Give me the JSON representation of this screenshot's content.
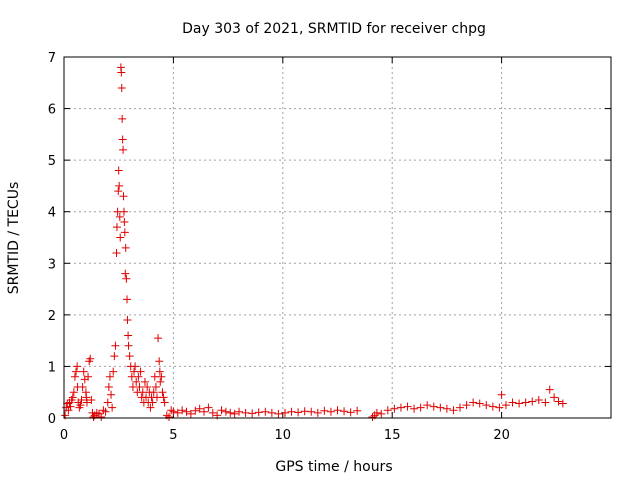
{
  "chart_data": {
    "type": "scatter",
    "title": "Day 303 of 2021, SRMTID for receiver chpg",
    "xlabel": "GPS time / hours",
    "ylabel": "SRMTID / TECUs",
    "xlim": [
      0,
      25
    ],
    "ylim": [
      0,
      7
    ],
    "xticks": [
      0,
      5,
      10,
      15,
      20
    ],
    "yticks": [
      0,
      1,
      2,
      3,
      4,
      5,
      6,
      7
    ],
    "grid": true,
    "marker": "+",
    "color": "#e00000",
    "series": [
      {
        "name": "SRMTID",
        "x": [
          0.05,
          0.1,
          0.15,
          0.2,
          0.25,
          0.3,
          0.35,
          0.4,
          0.45,
          0.5,
          0.55,
          0.6,
          0.62,
          0.65,
          0.7,
          0.75,
          0.8,
          0.85,
          0.9,
          0.95,
          1.0,
          1.02,
          1.05,
          1.1,
          1.15,
          1.2,
          1.25,
          1.3,
          1.35,
          1.4,
          1.5,
          1.6,
          1.7,
          1.8,
          1.9,
          2.0,
          2.05,
          2.1,
          2.15,
          2.2,
          2.25,
          2.3,
          2.35,
          2.4,
          2.42,
          2.45,
          2.48,
          2.5,
          2.52,
          2.55,
          2.57,
          2.6,
          2.62,
          2.64,
          2.66,
          2.68,
          2.7,
          2.72,
          2.74,
          2.76,
          2.78,
          2.8,
          2.82,
          2.85,
          2.88,
          2.9,
          2.93,
          2.95,
          3.0,
          3.05,
          3.1,
          3.15,
          3.2,
          3.25,
          3.3,
          3.35,
          3.4,
          3.45,
          3.5,
          3.55,
          3.6,
          3.65,
          3.7,
          3.75,
          3.8,
          3.85,
          3.9,
          3.95,
          4.0,
          4.05,
          4.1,
          4.15,
          4.2,
          4.25,
          4.3,
          4.35,
          4.38,
          4.4,
          4.45,
          4.5,
          4.55,
          4.6,
          4.7,
          4.8,
          4.9,
          5.0,
          5.2,
          5.4,
          5.6,
          5.8,
          6.0,
          6.2,
          6.4,
          6.6,
          6.8,
          7.0,
          7.2,
          7.4,
          7.6,
          7.8,
          8.0,
          8.3,
          8.6,
          8.9,
          9.2,
          9.5,
          9.8,
          10.1,
          10.4,
          10.7,
          11.0,
          11.3,
          11.6,
          11.9,
          12.2,
          12.5,
          12.8,
          13.1,
          13.4,
          14.1,
          14.2,
          14.3,
          14.5,
          14.8,
          15.1,
          15.4,
          15.7,
          16.0,
          16.3,
          16.6,
          16.9,
          17.2,
          17.5,
          17.8,
          18.1,
          18.4,
          18.7,
          19.0,
          19.3,
          19.6,
          19.9,
          20.0,
          20.2,
          20.5,
          20.8,
          21.1,
          21.4,
          21.7,
          22.0,
          22.2,
          22.4,
          22.6,
          22.8
        ],
        "y": [
          0.05,
          0.2,
          0.28,
          0.15,
          0.3,
          0.22,
          0.35,
          0.4,
          0.5,
          0.8,
          0.9,
          1.0,
          0.6,
          0.3,
          0.2,
          0.25,
          0.35,
          0.6,
          0.9,
          0.75,
          0.5,
          0.4,
          0.3,
          0.8,
          1.1,
          1.15,
          0.35,
          0.1,
          0.02,
          0.05,
          0.1,
          0.08,
          0.02,
          0.15,
          0.12,
          0.3,
          0.6,
          0.8,
          0.45,
          0.2,
          0.9,
          1.2,
          1.4,
          3.2,
          3.7,
          4.0,
          4.4,
          4.8,
          4.5,
          3.9,
          3.5,
          6.8,
          6.7,
          6.4,
          5.8,
          5.4,
          5.2,
          4.3,
          4.0,
          3.8,
          3.6,
          2.8,
          3.3,
          2.7,
          2.3,
          1.9,
          1.6,
          1.4,
          1.2,
          1.0,
          0.8,
          0.6,
          0.9,
          1.0,
          0.7,
          0.5,
          0.8,
          0.6,
          0.9,
          0.4,
          0.5,
          0.3,
          0.7,
          0.4,
          0.6,
          0.3,
          0.5,
          0.2,
          0.4,
          0.3,
          0.5,
          0.8,
          0.6,
          0.4,
          1.55,
          1.1,
          0.9,
          0.7,
          0.8,
          0.5,
          0.4,
          0.3,
          0.05,
          0.02,
          0.15,
          0.12,
          0.1,
          0.15,
          0.12,
          0.08,
          0.14,
          0.18,
          0.12,
          0.2,
          0.1,
          0.05,
          0.15,
          0.12,
          0.1,
          0.08,
          0.12,
          0.1,
          0.09,
          0.11,
          0.12,
          0.1,
          0.08,
          0.1,
          0.12,
          0.11,
          0.13,
          0.12,
          0.1,
          0.14,
          0.12,
          0.15,
          0.13,
          0.11,
          0.14,
          0.02,
          0.05,
          0.1,
          0.08,
          0.15,
          0.18,
          0.2,
          0.22,
          0.18,
          0.2,
          0.25,
          0.22,
          0.2,
          0.18,
          0.15,
          0.2,
          0.25,
          0.3,
          0.28,
          0.25,
          0.22,
          0.2,
          0.45,
          0.25,
          0.3,
          0.28,
          0.3,
          0.32,
          0.35,
          0.3,
          0.55,
          0.4,
          0.32,
          0.28
        ]
      }
    ]
  }
}
